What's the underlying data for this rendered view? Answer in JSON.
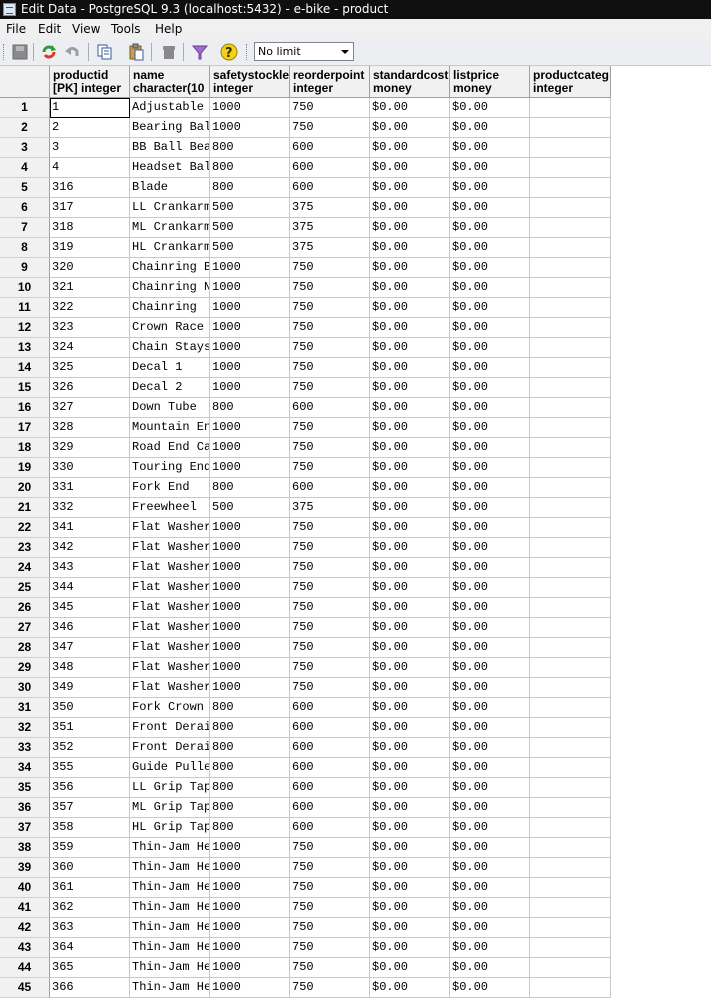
{
  "window": {
    "title": "Edit Data - PostgreSQL 9.3 (localhost:5432) - e-bike - product"
  },
  "menu": [
    "File",
    "Edit",
    "View",
    "Tools",
    "Help"
  ],
  "toolbar": {
    "icons": [
      "save-icon",
      "refresh-icon",
      "undo-icon",
      "copy-icon",
      "paste-icon",
      "delete-icon",
      "filter-icon",
      "help-icon"
    ],
    "limit": "No limit"
  },
  "columns": [
    {
      "name": "productid",
      "type": "[PK] integer"
    },
    {
      "name": "name",
      "type": "character(10"
    },
    {
      "name": "safetystockle",
      "type": "integer"
    },
    {
      "name": "reorderpoint",
      "type": "integer"
    },
    {
      "name": "standardcost",
      "type": "money"
    },
    {
      "name": "listprice",
      "type": "money"
    },
    {
      "name": "productcateg",
      "type": "integer"
    }
  ],
  "rows": [
    [
      "1",
      "1",
      "Adjustable",
      "1000",
      "750",
      "$0.00",
      "$0.00",
      ""
    ],
    [
      "2",
      "2",
      "Bearing Bal",
      "1000",
      "750",
      "$0.00",
      "$0.00",
      ""
    ],
    [
      "3",
      "3",
      "BB Ball Bea",
      "800",
      "600",
      "$0.00",
      "$0.00",
      ""
    ],
    [
      "4",
      "4",
      "Headset Bal",
      "800",
      "600",
      "$0.00",
      "$0.00",
      ""
    ],
    [
      "5",
      "316",
      "Blade",
      "800",
      "600",
      "$0.00",
      "$0.00",
      ""
    ],
    [
      "6",
      "317",
      "LL Crankarm",
      "500",
      "375",
      "$0.00",
      "$0.00",
      ""
    ],
    [
      "7",
      "318",
      "ML Crankarm",
      "500",
      "375",
      "$0.00",
      "$0.00",
      ""
    ],
    [
      "8",
      "319",
      "HL Crankarm",
      "500",
      "375",
      "$0.00",
      "$0.00",
      ""
    ],
    [
      "9",
      "320",
      "Chainring B",
      "1000",
      "750",
      "$0.00",
      "$0.00",
      ""
    ],
    [
      "10",
      "321",
      "Chainring N",
      "1000",
      "750",
      "$0.00",
      "$0.00",
      ""
    ],
    [
      "11",
      "322",
      "Chainring",
      "1000",
      "750",
      "$0.00",
      "$0.00",
      ""
    ],
    [
      "12",
      "323",
      "Crown Race",
      "1000",
      "750",
      "$0.00",
      "$0.00",
      ""
    ],
    [
      "13",
      "324",
      "Chain Stays",
      "1000",
      "750",
      "$0.00",
      "$0.00",
      ""
    ],
    [
      "14",
      "325",
      "Decal 1",
      "1000",
      "750",
      "$0.00",
      "$0.00",
      ""
    ],
    [
      "15",
      "326",
      "Decal 2",
      "1000",
      "750",
      "$0.00",
      "$0.00",
      ""
    ],
    [
      "16",
      "327",
      "Down Tube",
      "800",
      "600",
      "$0.00",
      "$0.00",
      ""
    ],
    [
      "17",
      "328",
      "Mountain En",
      "1000",
      "750",
      "$0.00",
      "$0.00",
      ""
    ],
    [
      "18",
      "329",
      "Road End Ca",
      "1000",
      "750",
      "$0.00",
      "$0.00",
      ""
    ],
    [
      "19",
      "330",
      "Touring End",
      "1000",
      "750",
      "$0.00",
      "$0.00",
      ""
    ],
    [
      "20",
      "331",
      "Fork End",
      "800",
      "600",
      "$0.00",
      "$0.00",
      ""
    ],
    [
      "21",
      "332",
      "Freewheel",
      "500",
      "375",
      "$0.00",
      "$0.00",
      ""
    ],
    [
      "22",
      "341",
      "Flat Washer",
      "1000",
      "750",
      "$0.00",
      "$0.00",
      ""
    ],
    [
      "23",
      "342",
      "Flat Washer",
      "1000",
      "750",
      "$0.00",
      "$0.00",
      ""
    ],
    [
      "24",
      "343",
      "Flat Washer",
      "1000",
      "750",
      "$0.00",
      "$0.00",
      ""
    ],
    [
      "25",
      "344",
      "Flat Washer",
      "1000",
      "750",
      "$0.00",
      "$0.00",
      ""
    ],
    [
      "26",
      "345",
      "Flat Washer",
      "1000",
      "750",
      "$0.00",
      "$0.00",
      ""
    ],
    [
      "27",
      "346",
      "Flat Washer",
      "1000",
      "750",
      "$0.00",
      "$0.00",
      ""
    ],
    [
      "28",
      "347",
      "Flat Washer",
      "1000",
      "750",
      "$0.00",
      "$0.00",
      ""
    ],
    [
      "29",
      "348",
      "Flat Washer",
      "1000",
      "750",
      "$0.00",
      "$0.00",
      ""
    ],
    [
      "30",
      "349",
      "Flat Washer",
      "1000",
      "750",
      "$0.00",
      "$0.00",
      ""
    ],
    [
      "31",
      "350",
      "Fork Crown",
      "800",
      "600",
      "$0.00",
      "$0.00",
      ""
    ],
    [
      "32",
      "351",
      "Front Derai",
      "800",
      "600",
      "$0.00",
      "$0.00",
      ""
    ],
    [
      "33",
      "352",
      "Front Derai",
      "800",
      "600",
      "$0.00",
      "$0.00",
      ""
    ],
    [
      "34",
      "355",
      "Guide Pulle",
      "800",
      "600",
      "$0.00",
      "$0.00",
      ""
    ],
    [
      "35",
      "356",
      "LL Grip Tap",
      "800",
      "600",
      "$0.00",
      "$0.00",
      ""
    ],
    [
      "36",
      "357",
      "ML Grip Tap",
      "800",
      "600",
      "$0.00",
      "$0.00",
      ""
    ],
    [
      "37",
      "358",
      "HL Grip Tap",
      "800",
      "600",
      "$0.00",
      "$0.00",
      ""
    ],
    [
      "38",
      "359",
      "Thin-Jam He",
      "1000",
      "750",
      "$0.00",
      "$0.00",
      ""
    ],
    [
      "39",
      "360",
      "Thin-Jam He",
      "1000",
      "750",
      "$0.00",
      "$0.00",
      ""
    ],
    [
      "40",
      "361",
      "Thin-Jam He",
      "1000",
      "750",
      "$0.00",
      "$0.00",
      ""
    ],
    [
      "41",
      "362",
      "Thin-Jam He",
      "1000",
      "750",
      "$0.00",
      "$0.00",
      ""
    ],
    [
      "42",
      "363",
      "Thin-Jam He",
      "1000",
      "750",
      "$0.00",
      "$0.00",
      ""
    ],
    [
      "43",
      "364",
      "Thin-Jam He",
      "1000",
      "750",
      "$0.00",
      "$0.00",
      ""
    ],
    [
      "44",
      "365",
      "Thin-Jam He",
      "1000",
      "750",
      "$0.00",
      "$0.00",
      ""
    ],
    [
      "45",
      "366",
      "Thin-Jam He",
      "1000",
      "750",
      "$0.00",
      "$0.00",
      ""
    ]
  ]
}
